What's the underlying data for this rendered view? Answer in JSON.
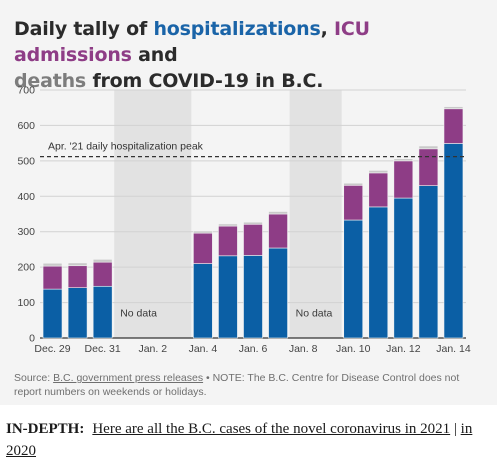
{
  "header": {
    "title_part1": "Daily tally of ",
    "title_hosp": "hospitalizations",
    "title_sep": ", ",
    "title_icu": "ICU admissions",
    "title_and": " and",
    "title_deaths": "deaths",
    "title_rest": " from COVID-19 in B.C."
  },
  "colors": {
    "hospitalizations": "#0b5fa5",
    "icu": "#8e3d86",
    "deaths": "#c9c9c9",
    "nodata_band": "#e2e2e2",
    "background": "#f4f4f4"
  },
  "chart_data": {
    "type": "bar",
    "stacked": true,
    "categories": [
      "Dec. 29",
      "Dec. 30",
      "Dec. 31",
      "Jan. 1",
      "Jan. 2",
      "Jan. 3",
      "Jan. 4",
      "Jan. 5",
      "Jan. 6",
      "Jan. 7",
      "Jan. 8",
      "Jan. 9",
      "Jan. 10",
      "Jan. 11",
      "Jan. 12",
      "Jan. 13",
      "Jan. 14"
    ],
    "tick_labels": [
      "Dec. 29",
      "",
      "Dec. 31",
      "",
      "Jan. 2",
      "",
      "Jan. 4",
      "",
      "Jan. 6",
      "",
      "Jan. 8",
      "",
      "Jan. 10",
      "",
      "Jan. 12",
      "",
      "Jan. 14"
    ],
    "series": [
      {
        "key": "hospitalizations",
        "values": [
          138,
          142,
          146,
          null,
          null,
          null,
          210,
          232,
          233,
          254,
          null,
          null,
          333,
          370,
          395,
          430,
          549
        ]
      },
      {
        "key": "icu",
        "values": [
          65,
          62,
          68,
          null,
          null,
          null,
          86,
          84,
          88,
          96,
          null,
          null,
          98,
          96,
          105,
          104,
          98
        ]
      },
      {
        "key": "deaths",
        "values": [
          8,
          8,
          8,
          null,
          null,
          null,
          6,
          6,
          6,
          7,
          null,
          null,
          6,
          7,
          6,
          8,
          6
        ]
      }
    ],
    "no_data": [
      {
        "categories": [
          "Jan. 1",
          "Jan. 2",
          "Jan. 3"
        ],
        "label": "No data"
      },
      {
        "categories": [
          "Jan. 8",
          "Jan. 9"
        ],
        "label": "No data"
      }
    ],
    "reference_line": {
      "value": 512,
      "label": "Apr. '21 daily hospitalization peak",
      "style": "dashed"
    },
    "ylim": [
      0,
      700
    ],
    "yticks": [
      0,
      100,
      200,
      300,
      400,
      500,
      600,
      700
    ],
    "grid": true
  },
  "footer": {
    "source_prefix": "Source: ",
    "source_link": "B.C. government press releases",
    "source_note": " • NOTE: The B.C. Centre for Disease Control does not report numbers on weekends or holidays."
  },
  "indepth": {
    "label": "IN-DEPTH:",
    "link_text": "Here are all the B.C. cases of the novel coronavirus in 2021",
    "sep": " | ",
    "link2_text": "in 2020"
  }
}
